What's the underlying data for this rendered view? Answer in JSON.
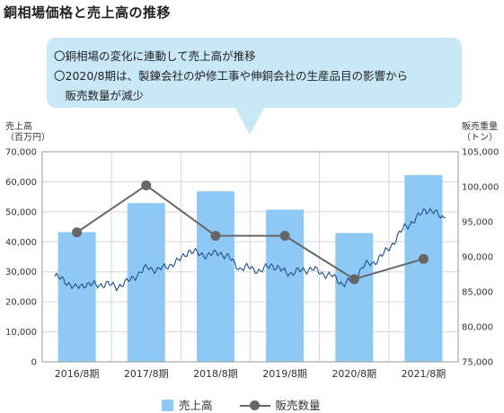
{
  "title": "銅相場価格と売上高の推移",
  "callout": {
    "lines": [
      "〇銅相場の変化に連動して売上高が推移",
      "〇2020/8期は、製錬会社の炉修工事や伸銅会社の生産品目の影響から",
      "　販売数量が減少"
    ]
  },
  "chart_data": {
    "type": "bar",
    "categories": [
      "2016/8期",
      "2017/8期",
      "2018/8期",
      "2019/8期",
      "2020/8期",
      "2021/8期"
    ],
    "left_axis": {
      "label_line1": "売上高",
      "label_line2": "（百万円）",
      "ylim": [
        0,
        70000
      ],
      "ticks": [
        "0",
        "10,000",
        "20,000",
        "30,000",
        "40,000",
        "50,000",
        "60,000",
        "70,000"
      ]
    },
    "right_axis": {
      "label_line1": "販売重量",
      "label_line2": "（トン）",
      "ylim": [
        75000,
        105000
      ],
      "ticks": [
        "75,000",
        "80,000",
        "85,000",
        "90,000",
        "95,000",
        "100,000",
        "105,000"
      ]
    },
    "series": [
      {
        "name": "売上高",
        "type": "bar",
        "axis": "left",
        "color": "#8ec9f5",
        "values": [
          43200,
          52900,
          56800,
          50700,
          42900,
          62200
        ]
      },
      {
        "name": "販売数量",
        "type": "line",
        "axis": "right",
        "color": "#666666",
        "values": [
          93500,
          100200,
          93000,
          93000,
          86800,
          89700
        ]
      }
    ],
    "copper_price_line": {
      "color": "#1f4e8c",
      "axis": "left",
      "values": [
        28500,
        27000,
        24500,
        26000,
        25500,
        26000,
        25000,
        26500,
        29000,
        31500,
        30500,
        32000,
        33500,
        37000,
        36000,
        35500,
        36500,
        34500,
        31000,
        31500,
        30000,
        32500,
        30500,
        29500,
        30500,
        31000,
        29500,
        28500,
        26000,
        27000,
        32000,
        33000,
        36000,
        40000,
        45000,
        47000,
        51000,
        49500,
        48000
      ]
    },
    "grid": true,
    "legend_position": "bottom"
  }
}
